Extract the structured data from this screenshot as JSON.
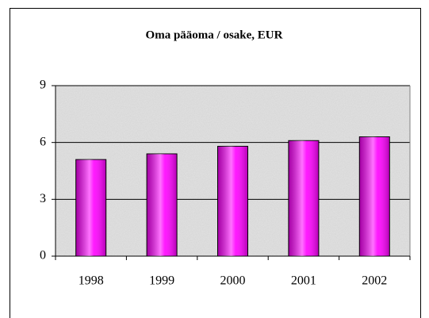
{
  "chart_data": {
    "type": "bar",
    "title": "Oma pääoma / osake, EUR",
    "categories": [
      "1998",
      "1999",
      "2000",
      "2001",
      "2002"
    ],
    "values": [
      5.1,
      5.4,
      5.8,
      6.1,
      6.3
    ],
    "color": "#ff00ff",
    "ylim": [
      0,
      9
    ],
    "yticks": [
      0,
      3,
      6,
      9
    ],
    "grid": true
  }
}
